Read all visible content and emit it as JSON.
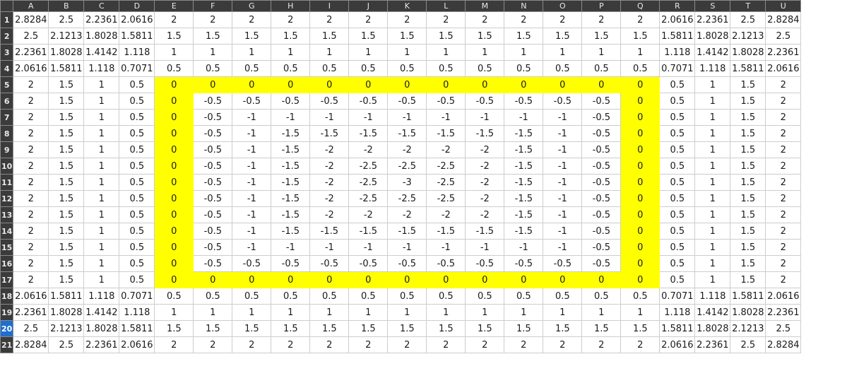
{
  "columns": [
    "A",
    "B",
    "C",
    "D",
    "E",
    "F",
    "G",
    "H",
    "I",
    "J",
    "K",
    "L",
    "M",
    "N",
    "O",
    "P",
    "Q",
    "R",
    "S",
    "T",
    "U"
  ],
  "active_row": 20,
  "highlight_color": "#ffff00",
  "highlight_region": {
    "rows": [
      5,
      17
    ],
    "cols": [
      "E",
      "Q"
    ]
  },
  "rows": [
    {
      "num": "1",
      "cells": [
        "2.8284",
        "2.5",
        "2.2361",
        "2.0616",
        "2",
        "2",
        "2",
        "2",
        "2",
        "2",
        "2",
        "2",
        "2",
        "2",
        "2",
        "2",
        "2",
        "2.0616",
        "2.2361",
        "2.5",
        "2.8284"
      ]
    },
    {
      "num": "2",
      "cells": [
        "2.5",
        "2.1213",
        "1.8028",
        "1.5811",
        "1.5",
        "1.5",
        "1.5",
        "1.5",
        "1.5",
        "1.5",
        "1.5",
        "1.5",
        "1.5",
        "1.5",
        "1.5",
        "1.5",
        "1.5",
        "1.5811",
        "1.8028",
        "2.1213",
        "2.5"
      ]
    },
    {
      "num": "3",
      "cells": [
        "2.2361",
        "1.8028",
        "1.4142",
        "1.118",
        "1",
        "1",
        "1",
        "1",
        "1",
        "1",
        "1",
        "1",
        "1",
        "1",
        "1",
        "1",
        "1",
        "1.118",
        "1.4142",
        "1.8028",
        "2.2361"
      ]
    },
    {
      "num": "4",
      "cells": [
        "2.0616",
        "1.5811",
        "1.118",
        "0.7071",
        "0.5",
        "0.5",
        "0.5",
        "0.5",
        "0.5",
        "0.5",
        "0.5",
        "0.5",
        "0.5",
        "0.5",
        "0.5",
        "0.5",
        "0.5",
        "0.7071",
        "1.118",
        "1.5811",
        "2.0616"
      ]
    },
    {
      "num": "5",
      "cells": [
        "2",
        "1.5",
        "1",
        "0.5",
        "0",
        "0",
        "0",
        "0",
        "0",
        "0",
        "0",
        "0",
        "0",
        "0",
        "0",
        "0",
        "0",
        "0.5",
        "1",
        "1.5",
        "2"
      ]
    },
    {
      "num": "6",
      "cells": [
        "2",
        "1.5",
        "1",
        "0.5",
        "0",
        "-0.5",
        "-0.5",
        "-0.5",
        "-0.5",
        "-0.5",
        "-0.5",
        "-0.5",
        "-0.5",
        "-0.5",
        "-0.5",
        "-0.5",
        "0",
        "0.5",
        "1",
        "1.5",
        "2"
      ]
    },
    {
      "num": "7",
      "cells": [
        "2",
        "1.5",
        "1",
        "0.5",
        "0",
        "-0.5",
        "-1",
        "-1",
        "-1",
        "-1",
        "-1",
        "-1",
        "-1",
        "-1",
        "-1",
        "-0.5",
        "0",
        "0.5",
        "1",
        "1.5",
        "2"
      ]
    },
    {
      "num": "8",
      "cells": [
        "2",
        "1.5",
        "1",
        "0.5",
        "0",
        "-0.5",
        "-1",
        "-1.5",
        "-1.5",
        "-1.5",
        "-1.5",
        "-1.5",
        "-1.5",
        "-1.5",
        "-1",
        "-0.5",
        "0",
        "0.5",
        "1",
        "1.5",
        "2"
      ]
    },
    {
      "num": "9",
      "cells": [
        "2",
        "1.5",
        "1",
        "0.5",
        "0",
        "-0.5",
        "-1",
        "-1.5",
        "-2",
        "-2",
        "-2",
        "-2",
        "-2",
        "-1.5",
        "-1",
        "-0.5",
        "0",
        "0.5",
        "1",
        "1.5",
        "2"
      ]
    },
    {
      "num": "10",
      "cells": [
        "2",
        "1.5",
        "1",
        "0.5",
        "0",
        "-0.5",
        "-1",
        "-1.5",
        "-2",
        "-2.5",
        "-2.5",
        "-2.5",
        "-2",
        "-1.5",
        "-1",
        "-0.5",
        "0",
        "0.5",
        "1",
        "1.5",
        "2"
      ]
    },
    {
      "num": "11",
      "cells": [
        "2",
        "1.5",
        "1",
        "0.5",
        "0",
        "-0.5",
        "-1",
        "-1.5",
        "-2",
        "-2.5",
        "-3",
        "-2.5",
        "-2",
        "-1.5",
        "-1",
        "-0.5",
        "0",
        "0.5",
        "1",
        "1.5",
        "2"
      ]
    },
    {
      "num": "12",
      "cells": [
        "2",
        "1.5",
        "1",
        "0.5",
        "0",
        "-0.5",
        "-1",
        "-1.5",
        "-2",
        "-2.5",
        "-2.5",
        "-2.5",
        "-2",
        "-1.5",
        "-1",
        "-0.5",
        "0",
        "0.5",
        "1",
        "1.5",
        "2"
      ]
    },
    {
      "num": "13",
      "cells": [
        "2",
        "1.5",
        "1",
        "0.5",
        "0",
        "-0.5",
        "-1",
        "-1.5",
        "-2",
        "-2",
        "-2",
        "-2",
        "-2",
        "-1.5",
        "-1",
        "-0.5",
        "0",
        "0.5",
        "1",
        "1.5",
        "2"
      ]
    },
    {
      "num": "14",
      "cells": [
        "2",
        "1.5",
        "1",
        "0.5",
        "0",
        "-0.5",
        "-1",
        "-1.5",
        "-1.5",
        "-1.5",
        "-1.5",
        "-1.5",
        "-1.5",
        "-1.5",
        "-1",
        "-0.5",
        "0",
        "0.5",
        "1",
        "1.5",
        "2"
      ]
    },
    {
      "num": "15",
      "cells": [
        "2",
        "1.5",
        "1",
        "0.5",
        "0",
        "-0.5",
        "-1",
        "-1",
        "-1",
        "-1",
        "-1",
        "-1",
        "-1",
        "-1",
        "-1",
        "-0.5",
        "0",
        "0.5",
        "1",
        "1.5",
        "2"
      ]
    },
    {
      "num": "16",
      "cells": [
        "2",
        "1.5",
        "1",
        "0.5",
        "0",
        "-0.5",
        "-0.5",
        "-0.5",
        "-0.5",
        "-0.5",
        "-0.5",
        "-0.5",
        "-0.5",
        "-0.5",
        "-0.5",
        "-0.5",
        "0",
        "0.5",
        "1",
        "1.5",
        "2"
      ]
    },
    {
      "num": "17",
      "cells": [
        "2",
        "1.5",
        "1",
        "0.5",
        "0",
        "0",
        "0",
        "0",
        "0",
        "0",
        "0",
        "0",
        "0",
        "0",
        "0",
        "0",
        "0",
        "0.5",
        "1",
        "1.5",
        "2"
      ]
    },
    {
      "num": "18",
      "cells": [
        "2.0616",
        "1.5811",
        "1.118",
        "0.7071",
        "0.5",
        "0.5",
        "0.5",
        "0.5",
        "0.5",
        "0.5",
        "0.5",
        "0.5",
        "0.5",
        "0.5",
        "0.5",
        "0.5",
        "0.5",
        "0.7071",
        "1.118",
        "1.5811",
        "2.0616"
      ]
    },
    {
      "num": "19",
      "cells": [
        "2.2361",
        "1.8028",
        "1.4142",
        "1.118",
        "1",
        "1",
        "1",
        "1",
        "1",
        "1",
        "1",
        "1",
        "1",
        "1",
        "1",
        "1",
        "1",
        "1.118",
        "1.4142",
        "1.8028",
        "2.2361"
      ]
    },
    {
      "num": "20",
      "cells": [
        "2.5",
        "2.1213",
        "1.8028",
        "1.5811",
        "1.5",
        "1.5",
        "1.5",
        "1.5",
        "1.5",
        "1.5",
        "1.5",
        "1.5",
        "1.5",
        "1.5",
        "1.5",
        "1.5",
        "1.5",
        "1.5811",
        "1.8028",
        "2.1213",
        "2.5"
      ]
    },
    {
      "num": "21",
      "cells": [
        "2.8284",
        "2.5",
        "2.2361",
        "2.0616",
        "2",
        "2",
        "2",
        "2",
        "2",
        "2",
        "2",
        "2",
        "2",
        "2",
        "2",
        "2",
        "2",
        "2.0616",
        "2.2361",
        "2.5",
        "2.8284"
      ]
    }
  ]
}
